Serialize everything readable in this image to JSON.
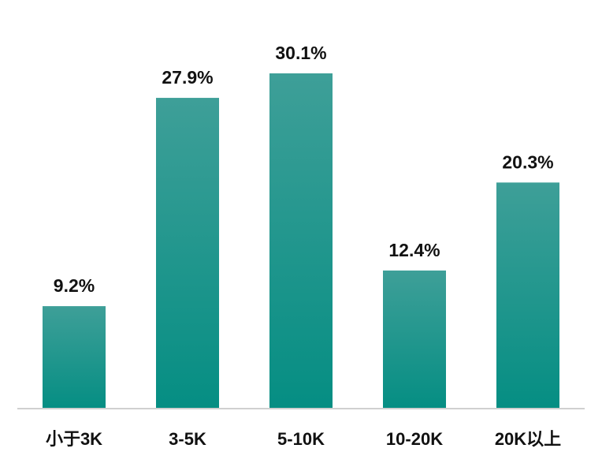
{
  "chart_data": {
    "type": "bar",
    "categories": [
      "小于3K",
      "3-5K",
      "5-10K",
      "10-20K",
      "20K以上"
    ],
    "values": [
      9.2,
      27.9,
      30.1,
      12.4,
      20.3
    ],
    "data_labels": [
      "9.2%",
      "27.9%",
      "30.1%",
      "12.4%",
      "20.3%"
    ],
    "unit": "%",
    "title": "",
    "xlabel": "",
    "ylabel": "",
    "ylim": [
      0,
      30.1
    ],
    "grid": false,
    "legend": "none",
    "colors": {
      "bar_top": "#3e9f98",
      "bar_bottom": "#058e83",
      "axis": "#d0d0d0"
    }
  }
}
